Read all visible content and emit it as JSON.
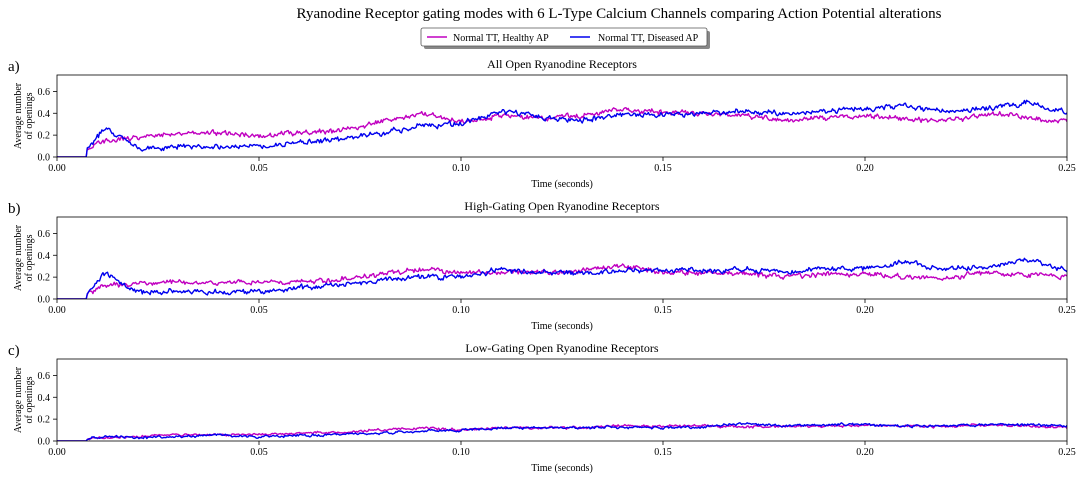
{
  "figure": {
    "title": "Ryanodine Receptor gating modes with 6 L-Type Calcium Channels comparing Action Potential alterations",
    "legend": {
      "placement": "top-center",
      "entries": [
        {
          "label": "Normal TT, Healthy AP",
          "color": "#c000c0"
        },
        {
          "label": "Normal TT, Diseased AP",
          "color": "#0000ee"
        }
      ]
    }
  },
  "chart_data": [
    {
      "type": "line",
      "panel_label": "a)",
      "title": "All Open Ryanodine Receptors",
      "xlabel": "Time (seconds)",
      "ylabel": [
        "Average number",
        "of openings"
      ],
      "xlim": [
        0,
        0.25
      ],
      "ylim": [
        0,
        0.75
      ],
      "xticks": [
        "0.00",
        "0.05",
        "0.10",
        "0.15",
        "0.20",
        "0.25"
      ],
      "yticks": [
        "0.0",
        "0.2",
        "0.4",
        "0.6"
      ],
      "grid": false,
      "x": [
        0,
        0.005,
        0.008,
        0.012,
        0.02,
        0.03,
        0.04,
        0.05,
        0.06,
        0.07,
        0.08,
        0.09,
        0.1,
        0.11,
        0.12,
        0.13,
        0.14,
        0.15,
        0.16,
        0.17,
        0.18,
        0.19,
        0.2,
        0.21,
        0.22,
        0.23,
        0.24,
        0.25
      ],
      "series": [
        {
          "name": "Normal TT, Healthy AP",
          "color": "#c000c0",
          "values": [
            0,
            0,
            0.08,
            0.15,
            0.18,
            0.22,
            0.22,
            0.2,
            0.22,
            0.24,
            0.32,
            0.4,
            0.33,
            0.38,
            0.36,
            0.38,
            0.44,
            0.4,
            0.4,
            0.38,
            0.33,
            0.36,
            0.38,
            0.35,
            0.32,
            0.4,
            0.36,
            0.32
          ]
        },
        {
          "name": "Normal TT, Diseased AP",
          "color": "#0000ee",
          "values": [
            0,
            0,
            0.08,
            0.28,
            0.08,
            0.1,
            0.1,
            0.1,
            0.13,
            0.16,
            0.22,
            0.28,
            0.3,
            0.42,
            0.36,
            0.34,
            0.38,
            0.38,
            0.4,
            0.42,
            0.4,
            0.42,
            0.44,
            0.46,
            0.42,
            0.44,
            0.5,
            0.4
          ]
        }
      ]
    },
    {
      "type": "line",
      "panel_label": "b)",
      "title": "High-Gating Open Ryanodine Receptors",
      "xlabel": "Time (seconds)",
      "ylabel": [
        "Average number",
        "of openings"
      ],
      "xlim": [
        0,
        0.25
      ],
      "ylim": [
        0,
        0.75
      ],
      "xticks": [
        "0.00",
        "0.05",
        "0.10",
        "0.15",
        "0.20",
        "0.25"
      ],
      "yticks": [
        "0.0",
        "0.2",
        "0.4",
        "0.6"
      ],
      "grid": false,
      "x": [
        0,
        0.005,
        0.008,
        0.012,
        0.02,
        0.03,
        0.04,
        0.05,
        0.06,
        0.07,
        0.08,
        0.09,
        0.1,
        0.11,
        0.12,
        0.13,
        0.14,
        0.15,
        0.16,
        0.17,
        0.18,
        0.19,
        0.2,
        0.21,
        0.22,
        0.23,
        0.24,
        0.25
      ],
      "series": [
        {
          "name": "Normal TT, Healthy AP",
          "color": "#c000c0",
          "values": [
            0,
            0,
            0.06,
            0.12,
            0.14,
            0.16,
            0.15,
            0.15,
            0.16,
            0.18,
            0.22,
            0.28,
            0.24,
            0.25,
            0.24,
            0.26,
            0.3,
            0.25,
            0.24,
            0.24,
            0.2,
            0.22,
            0.23,
            0.2,
            0.19,
            0.24,
            0.22,
            0.2
          ]
        },
        {
          "name": "Normal TT, Diseased AP",
          "color": "#0000ee",
          "values": [
            0,
            0,
            0.07,
            0.24,
            0.06,
            0.07,
            0.06,
            0.07,
            0.1,
            0.13,
            0.17,
            0.2,
            0.2,
            0.27,
            0.24,
            0.24,
            0.26,
            0.26,
            0.27,
            0.27,
            0.25,
            0.27,
            0.28,
            0.33,
            0.28,
            0.29,
            0.36,
            0.27
          ]
        }
      ]
    },
    {
      "type": "line",
      "panel_label": "c)",
      "title": "Low-Gating Open Ryanodine Receptors",
      "xlabel": "Time (seconds)",
      "ylabel": [
        "Average number",
        "of openings"
      ],
      "xlim": [
        0,
        0.25
      ],
      "ylim": [
        0,
        0.75
      ],
      "xticks": [
        "0.00",
        "0.05",
        "0.10",
        "0.15",
        "0.20",
        "0.25"
      ],
      "yticks": [
        "0.0",
        "0.2",
        "0.4",
        "0.6"
      ],
      "grid": false,
      "x": [
        0,
        0.005,
        0.008,
        0.012,
        0.02,
        0.03,
        0.04,
        0.05,
        0.06,
        0.07,
        0.08,
        0.09,
        0.1,
        0.11,
        0.12,
        0.13,
        0.14,
        0.15,
        0.16,
        0.17,
        0.18,
        0.19,
        0.2,
        0.21,
        0.22,
        0.23,
        0.24,
        0.25
      ],
      "series": [
        {
          "name": "Normal TT, Healthy AP",
          "color": "#c000c0",
          "values": [
            0,
            0,
            0.02,
            0.03,
            0.04,
            0.06,
            0.06,
            0.06,
            0.07,
            0.08,
            0.1,
            0.12,
            0.1,
            0.12,
            0.12,
            0.12,
            0.14,
            0.14,
            0.14,
            0.13,
            0.13,
            0.14,
            0.14,
            0.14,
            0.13,
            0.15,
            0.14,
            0.12
          ]
        },
        {
          "name": "Normal TT, Diseased AP",
          "color": "#0000ee",
          "values": [
            0,
            0,
            0.02,
            0.04,
            0.03,
            0.04,
            0.05,
            0.04,
            0.05,
            0.06,
            0.07,
            0.09,
            0.1,
            0.12,
            0.12,
            0.12,
            0.13,
            0.12,
            0.13,
            0.16,
            0.14,
            0.15,
            0.15,
            0.13,
            0.14,
            0.15,
            0.15,
            0.14
          ]
        }
      ]
    }
  ]
}
